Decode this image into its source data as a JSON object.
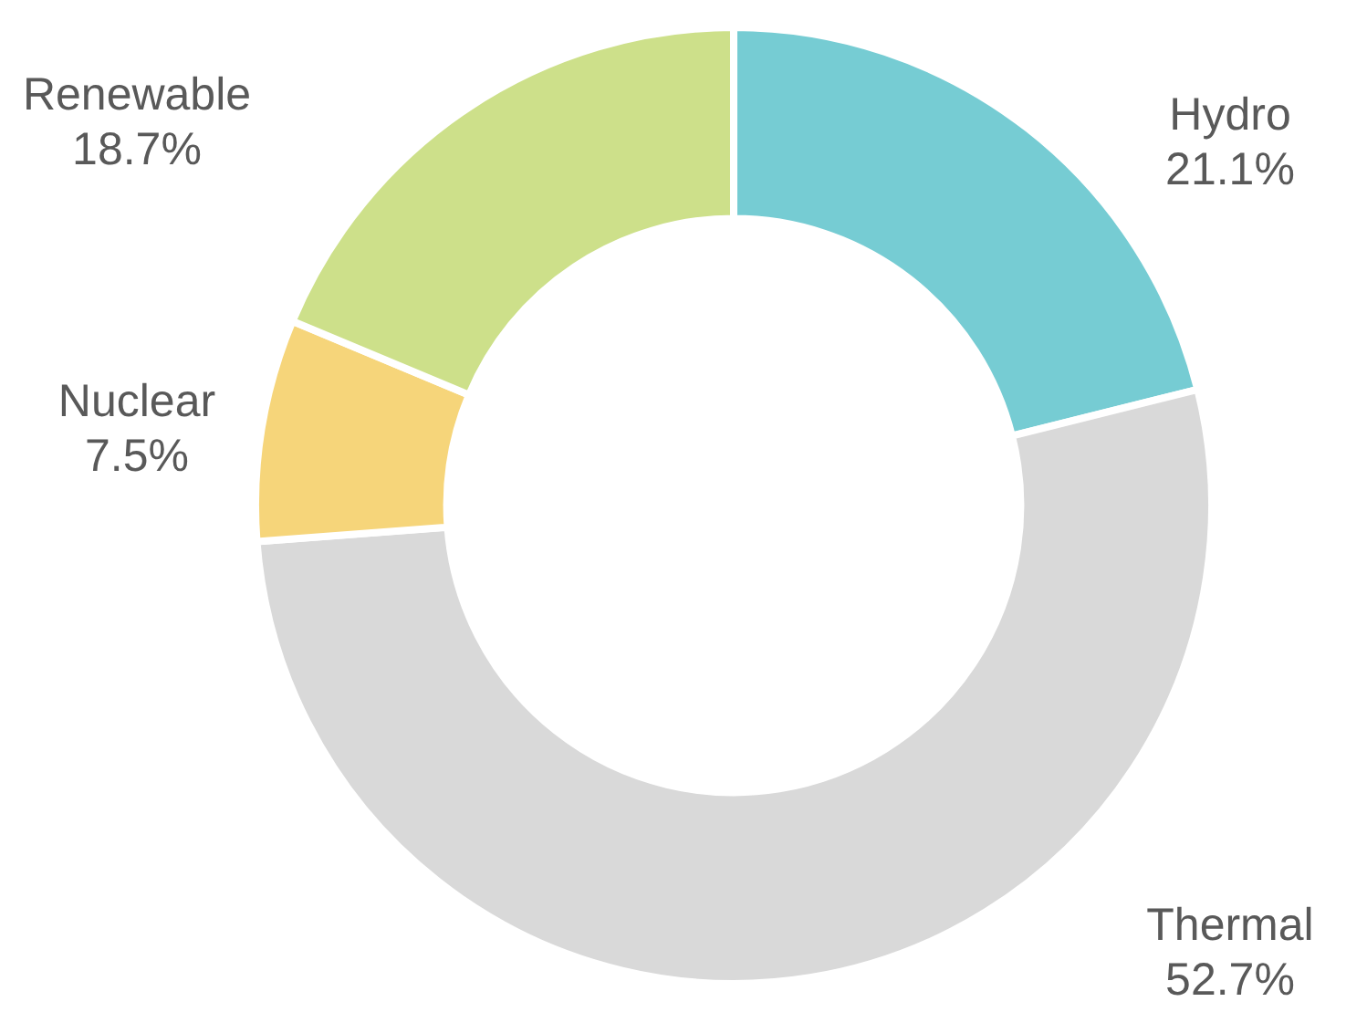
{
  "chart_data": {
    "type": "donut",
    "categories": [
      "Hydro",
      "Thermal",
      "Nuclear",
      "Renewable"
    ],
    "values": [
      21.1,
      52.7,
      7.5,
      18.7
    ],
    "value_labels": [
      "21.1%",
      "52.7%",
      "7.5%",
      "18.7%"
    ],
    "colors": [
      "#76ccd3",
      "#d9d9d9",
      "#f6d57a",
      "#cde08a"
    ],
    "legend": false
  }
}
